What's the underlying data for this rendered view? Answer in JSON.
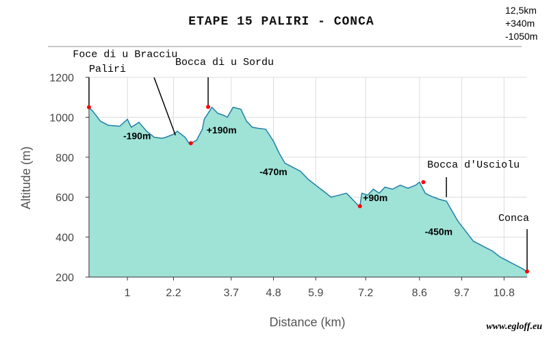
{
  "page": {
    "title": "ETAPE 15 PALIRI - CONCA",
    "stats": [
      "12,5km",
      "+340m",
      "-1050m"
    ],
    "watermark": "www.egloff.eu"
  },
  "colors": {
    "fill": "#9fe2d6",
    "line": "#1f7fa8",
    "marker": "#ff0000",
    "grid": "#dcdcdc"
  },
  "chart_data": {
    "type": "area",
    "xlabel": "Distance (km)",
    "ylabel": "Altitude (m)",
    "ylim": [
      200,
      1200
    ],
    "xlim": [
      0,
      11.4
    ],
    "yticks": [
      200,
      400,
      600,
      800,
      1000,
      1200
    ],
    "xticks": [
      1,
      2.2,
      3.7,
      4.8,
      5.9,
      7.2,
      8.6,
      9.7,
      10.8
    ],
    "xtick_labels": [
      "1",
      "2.2",
      "3.7",
      "4.8",
      "5.9",
      "7.2",
      "8.6",
      "9.7",
      "10.8"
    ],
    "grid": true,
    "series": [
      {
        "x": [
          0,
          0.1,
          0.3,
          0.5,
          0.8,
          1.0,
          1.1,
          1.3,
          1.5,
          1.7,
          1.9,
          2.0,
          2.2,
          2.3,
          2.5,
          2.6,
          2.7,
          2.8,
          2.95,
          3.0,
          3.2,
          3.35,
          3.5,
          3.6,
          3.75,
          3.95,
          4.1,
          4.25,
          4.4,
          4.6,
          4.8,
          4.95,
          5.1,
          5.3,
          5.5,
          5.7,
          5.9,
          6.1,
          6.3,
          6.5,
          6.7,
          6.9,
          7.0,
          7.05,
          7.1,
          7.25,
          7.4,
          7.55,
          7.7,
          7.9,
          8.1,
          8.3,
          8.5,
          8.6,
          8.75,
          8.9,
          9.1,
          9.3,
          9.45,
          9.6,
          9.8,
          10.0,
          10.2,
          10.5,
          10.7,
          10.9,
          11.1,
          11.3,
          11.4
        ],
        "y": [
          1050,
          1030,
          980,
          960,
          955,
          990,
          950,
          975,
          930,
          900,
          895,
          900,
          915,
          930,
          900,
          870,
          875,
          885,
          940,
          990,
          1050,
          1020,
          1010,
          1000,
          1050,
          1040,
          980,
          950,
          945,
          940,
          880,
          820,
          770,
          750,
          730,
          690,
          660,
          630,
          600,
          610,
          620,
          580,
          560,
          555,
          620,
          610,
          640,
          620,
          650,
          640,
          660,
          645,
          660,
          675,
          620,
          605,
          590,
          580,
          530,
          480,
          430,
          380,
          360,
          330,
          300,
          280,
          260,
          240,
          225
        ]
      }
    ],
    "points": [
      {
        "x": 0,
        "y": 1050
      },
      {
        "x": 2.65,
        "y": 870
      },
      {
        "x": 3.1,
        "y": 1052
      },
      {
        "x": 7.05,
        "y": 555
      },
      {
        "x": 8.7,
        "y": 675
      },
      {
        "x": 11.4,
        "y": 228
      }
    ],
    "annotations": [
      {
        "text": "Paliri",
        "x": 0,
        "y": 1050,
        "line_top": 1200,
        "kind": "place"
      },
      {
        "text": "Foce di u Bracciu",
        "x": 2.25,
        "y": 910,
        "line_top": 1240,
        "kind": "place"
      },
      {
        "text": "Bocca di u Sordu",
        "x": 3.1,
        "y": 1052,
        "line_top": 1200,
        "kind": "place"
      },
      {
        "text": "Bocca d'Usciolu",
        "x": 9.3,
        "y": 600,
        "line_top": 700,
        "kind": "place"
      },
      {
        "text": "Conca",
        "x": 11.4,
        "y": 228,
        "line_top": 440,
        "kind": "place"
      }
    ],
    "segment_labels": [
      {
        "text": "-190m",
        "x": 1.25,
        "y": 890
      },
      {
        "text": "+190m",
        "x": 3.45,
        "y": 920
      },
      {
        "text": "-470m",
        "x": 4.8,
        "y": 710
      },
      {
        "text": "+90m",
        "x": 7.45,
        "y": 580
      },
      {
        "text": "-450m",
        "x": 9.1,
        "y": 410
      }
    ]
  }
}
